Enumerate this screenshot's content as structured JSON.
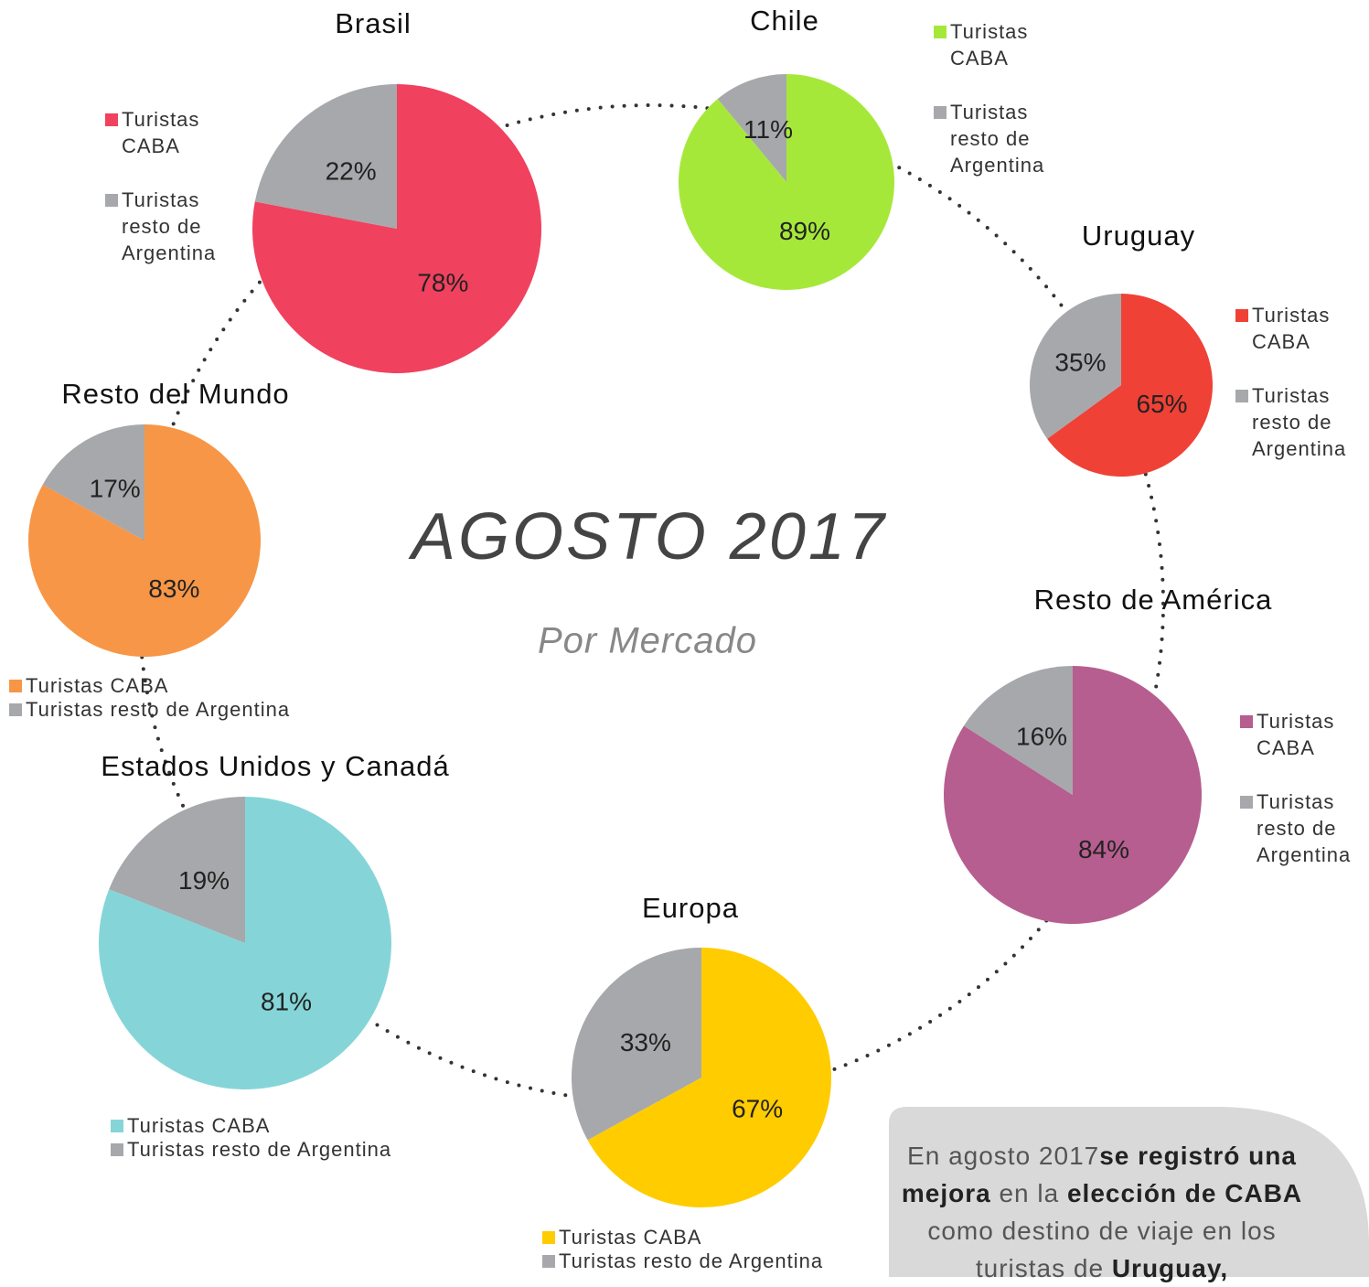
{
  "title": "AGOSTO 2017",
  "subtitle": "Por Mercado",
  "chart_data": [
    {
      "type": "pie",
      "title": "Brasil",
      "categories": [
        "Turistas CABA",
        "Turistas resto de Argentina"
      ],
      "values": [
        78,
        22
      ],
      "value_labels": [
        "78%",
        "22%"
      ],
      "colors": [
        "#f0415e",
        "#a7a8ab"
      ]
    },
    {
      "type": "pie",
      "title": "Chile",
      "categories": [
        "Turistas CABA",
        "Turistas resto de Argentina"
      ],
      "values": [
        89,
        11
      ],
      "value_labels": [
        "89%",
        "11%"
      ],
      "colors": [
        "#a6e83a",
        "#a7a8ab"
      ]
    },
    {
      "type": "pie",
      "title": "Uruguay",
      "categories": [
        "Turistas CABA",
        "Turistas resto de Argentina"
      ],
      "values": [
        65,
        35
      ],
      "value_labels": [
        "65%",
        "35%"
      ],
      "colors": [
        "#ef4136",
        "#a7a8ab"
      ]
    },
    {
      "type": "pie",
      "title": "Resto de América",
      "categories": [
        "Turistas CABA",
        "Turistas resto de Argentina"
      ],
      "values": [
        84,
        16
      ],
      "value_labels": [
        "84%",
        "16%"
      ],
      "colors": [
        "#b65e8f",
        "#a7a8ab"
      ]
    },
    {
      "type": "pie",
      "title": "Europa",
      "categories": [
        "Turistas CABA",
        "Turistas resto de Argentina"
      ],
      "values": [
        67,
        33
      ],
      "value_labels": [
        "67%",
        "33%"
      ],
      "colors": [
        "#ffcc00",
        "#a7a8ab"
      ]
    },
    {
      "type": "pie",
      "title": "Estados Unidos y Canadá",
      "categories": [
        "Turistas CABA",
        "Turistas resto de Argentina"
      ],
      "values": [
        81,
        19
      ],
      "value_labels": [
        "81%",
        "19%"
      ],
      "colors": [
        "#85d5d8",
        "#a7a8ab"
      ]
    },
    {
      "type": "pie",
      "title": "Resto del Mundo",
      "categories": [
        "Turistas CABA",
        "Turistas resto de Argentina"
      ],
      "values": [
        83,
        17
      ],
      "value_labels": [
        "83%",
        "17%"
      ],
      "colors": [
        "#f79646",
        "#a7a8ab"
      ]
    }
  ],
  "note": {
    "segments": [
      {
        "text": "En agosto 2017",
        "bold": false
      },
      {
        "text": "se registró una mejora",
        "bold": true
      },
      {
        "text": " en la ",
        "bold": false
      },
      {
        "text": "elección de CABA",
        "bold": true
      },
      {
        "text": " como destino de viaje en los turistas de ",
        "bold": false
      },
      {
        "text": "Uruguay,",
        "bold": true
      }
    ]
  }
}
